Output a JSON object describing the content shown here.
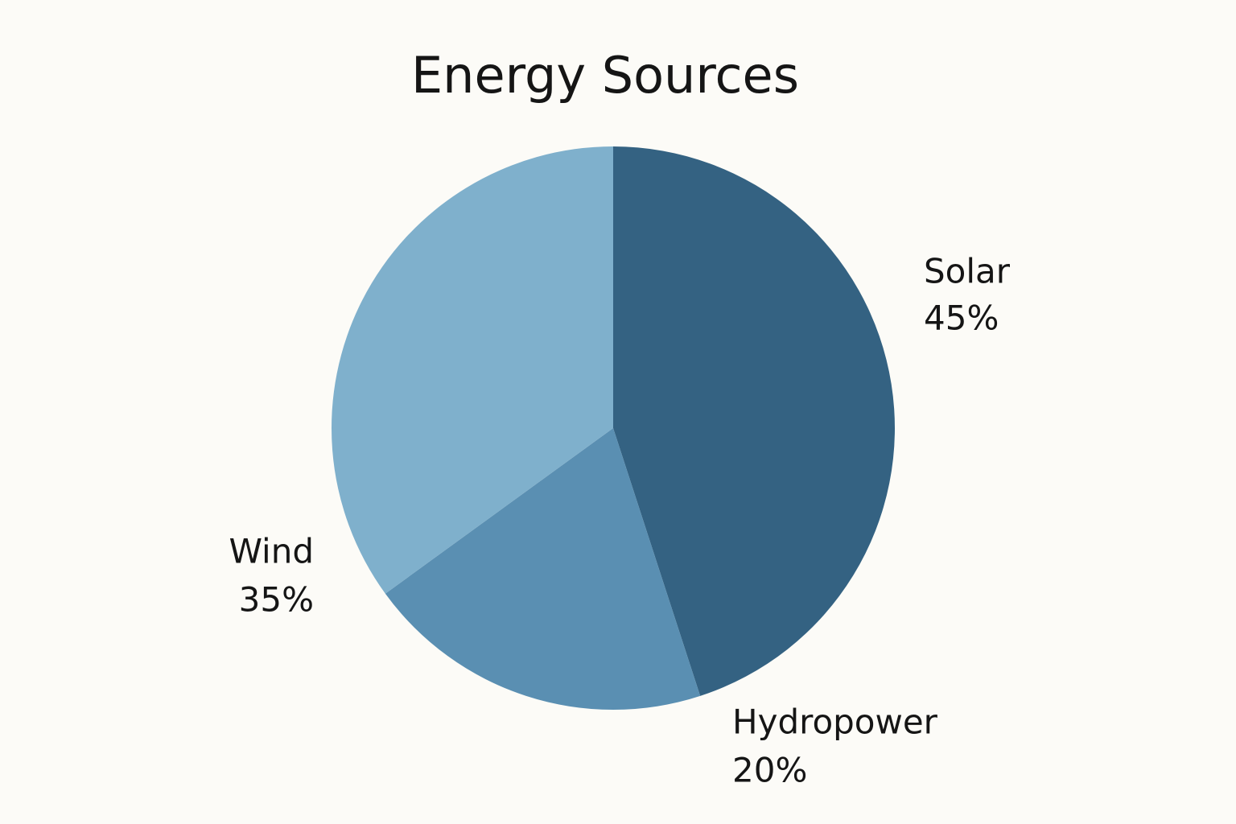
{
  "chart_data": {
    "type": "pie",
    "title": "Energy Sources",
    "categories": [
      "Solar",
      "Hydropower",
      "Wind"
    ],
    "values": [
      45,
      20,
      35
    ],
    "value_labels": [
      "45%",
      "20%",
      "35%"
    ],
    "colors": [
      "#346282",
      "#5a8fb2",
      "#7fb0cc"
    ]
  }
}
